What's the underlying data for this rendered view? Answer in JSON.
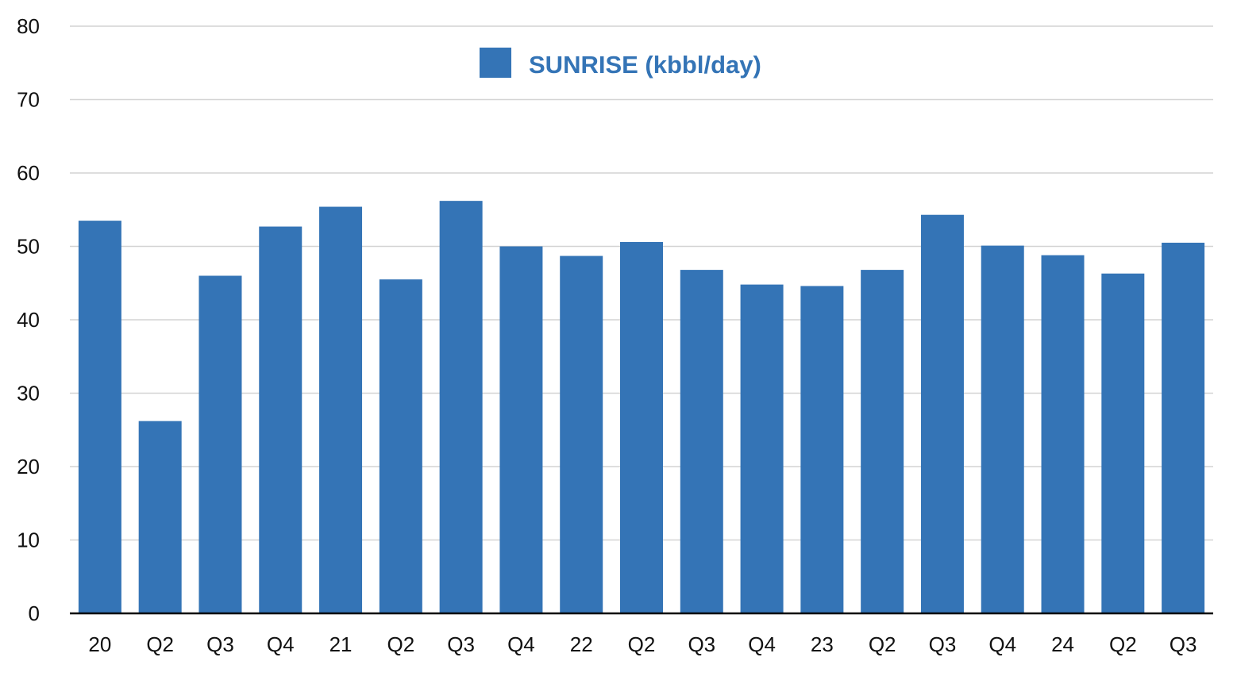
{
  "chart_data": {
    "type": "bar",
    "title": "",
    "xlabel": "",
    "ylabel": "",
    "categories": [
      "20",
      "Q2",
      "Q3",
      "Q4",
      "21",
      "Q2",
      "Q3",
      "Q4",
      "22",
      "Q2",
      "Q3",
      "Q4",
      "23",
      "Q2",
      "Q3",
      "Q4",
      "24",
      "Q2",
      "Q3"
    ],
    "series": [
      {
        "name": "SUNRISE (kbbl/day)",
        "color": "#3474b6",
        "values": [
          53.5,
          26.2,
          46.0,
          52.7,
          55.4,
          45.5,
          56.2,
          50.0,
          48.7,
          50.6,
          46.8,
          44.8,
          44.6,
          46.8,
          54.3,
          50.1,
          48.8,
          46.3,
          50.5
        ]
      }
    ],
    "ylim": [
      0,
      80
    ],
    "yticks": [
      "0",
      "10",
      "20",
      "30",
      "40",
      "50",
      "60",
      "70",
      "80"
    ],
    "grid": true,
    "legend_position": "top-center"
  }
}
